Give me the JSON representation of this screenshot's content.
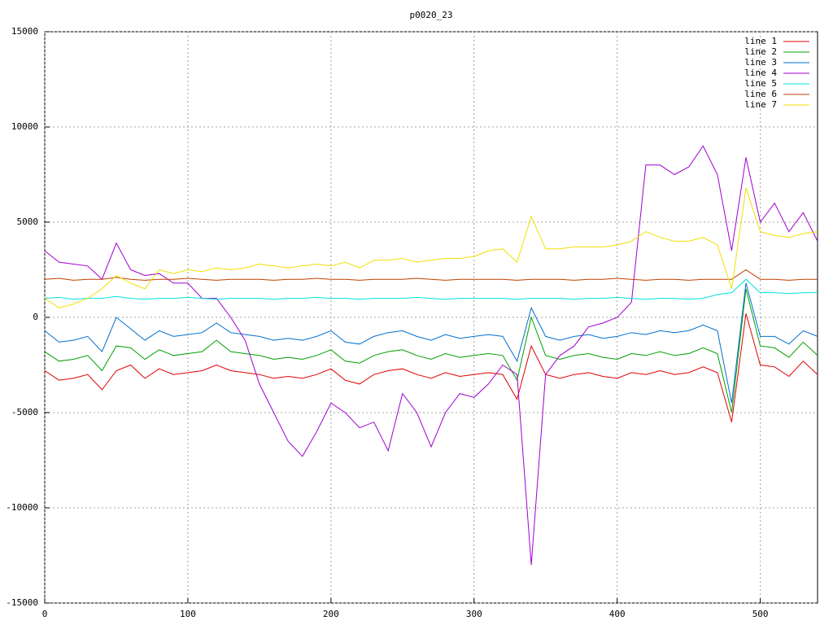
{
  "chart_data": {
    "type": "line",
    "title": "p0020_23",
    "x": [
      0,
      10,
      20,
      30,
      40,
      50,
      60,
      70,
      80,
      90,
      100,
      110,
      120,
      130,
      140,
      150,
      160,
      170,
      180,
      190,
      200,
      210,
      220,
      230,
      240,
      250,
      260,
      270,
      280,
      290,
      300,
      310,
      320,
      330,
      340,
      350,
      360,
      370,
      380,
      390,
      400,
      410,
      420,
      430,
      440,
      450,
      460,
      470,
      480,
      490,
      500,
      510,
      520,
      530,
      540
    ],
    "xlim": [
      0,
      540
    ],
    "xticks": [
      0,
      100,
      200,
      300,
      400,
      500
    ],
    "ylim": [
      -15000,
      15000
    ],
    "yticks": [
      -15000,
      -10000,
      -5000,
      0,
      5000,
      10000,
      15000
    ],
    "grid": true,
    "legend": "top-right",
    "series": [
      {
        "name": "line 1",
        "color": "#e00000",
        "values": [
          -2800,
          -3300,
          -3200,
          -3000,
          -3800,
          -2800,
          -2500,
          -3200,
          -2700,
          -3000,
          -2900,
          -2800,
          -2500,
          -2800,
          -2900,
          -3000,
          -3200,
          -3100,
          -3200,
          -3000,
          -2700,
          -3300,
          -3500,
          -3000,
          -2800,
          -2700,
          -3000,
          -3200,
          -2900,
          -3100,
          -3000,
          -2900,
          -3000,
          -4300,
          -1500,
          -3000,
          -3200,
          -3000,
          -2900,
          -3100,
          -3200,
          -2900,
          -3000,
          -2800,
          -3000,
          -2900,
          -2600,
          -2900,
          -5500,
          200,
          -2500,
          -2600,
          -3100,
          -2300,
          -3000
        ]
      },
      {
        "name": "line 2",
        "color": "#00a000",
        "values": [
          -1800,
          -2300,
          -2200,
          -2000,
          -2800,
          -1500,
          -1600,
          -2200,
          -1700,
          -2000,
          -1900,
          -1800,
          -1200,
          -1800,
          -1900,
          -2000,
          -2200,
          -2100,
          -2200,
          -2000,
          -1700,
          -2300,
          -2400,
          -2000,
          -1800,
          -1700,
          -2000,
          -2200,
          -1900,
          -2100,
          -2000,
          -1900,
          -2000,
          -3300,
          0,
          -2000,
          -2200,
          -2000,
          -1900,
          -2100,
          -2200,
          -1900,
          -2000,
          -1800,
          -2000,
          -1900,
          -1600,
          -1900,
          -5000,
          1500,
          -1500,
          -1600,
          -2100,
          -1300,
          -2000
        ]
      },
      {
        "name": "line 3",
        "color": "#0070d0",
        "values": [
          -700,
          -1300,
          -1200,
          -1000,
          -1800,
          0,
          -600,
          -1200,
          -700,
          -1000,
          -900,
          -800,
          -300,
          -800,
          -900,
          -1000,
          -1200,
          -1100,
          -1200,
          -1000,
          -700,
          -1300,
          -1400,
          -1000,
          -800,
          -700,
          -1000,
          -1200,
          -900,
          -1100,
          -1000,
          -900,
          -1000,
          -2300,
          500,
          -1000,
          -1200,
          -1000,
          -900,
          -1100,
          -1000,
          -800,
          -900,
          -700,
          -800,
          -700,
          -400,
          -700,
          -4500,
          1800,
          -1000,
          -1000,
          -1400,
          -700,
          -1000
        ]
      },
      {
        "name": "line 4",
        "color": "#a000d0",
        "values": [
          3500,
          2900,
          2800,
          2700,
          2000,
          3900,
          2500,
          2200,
          2300,
          1800,
          1800,
          1000,
          1000,
          0,
          -1200,
          -3500,
          -5000,
          -6500,
          -7300,
          -6000,
          -4500,
          -5000,
          -5800,
          -5500,
          -7000,
          -4000,
          -5000,
          -6800,
          -5000,
          -4000,
          -4200,
          -3500,
          -2500,
          -3000,
          -13000,
          -3000,
          -2000,
          -1500,
          -500,
          -300,
          0,
          800,
          8000,
          8000,
          7500,
          7900,
          9000,
          7500,
          3500,
          8400,
          5000,
          6000,
          4500,
          5500,
          4000
        ]
      },
      {
        "name": "line 5",
        "color": "#00e0e0",
        "values": [
          1000,
          1050,
          950,
          1000,
          1000,
          1100,
          1000,
          950,
          1000,
          1000,
          1050,
          1000,
          950,
          1000,
          1000,
          1000,
          950,
          1000,
          1000,
          1050,
          1000,
          1000,
          950,
          1000,
          1000,
          1000,
          1050,
          1000,
          950,
          1000,
          1000,
          1000,
          1000,
          950,
          1000,
          1000,
          1000,
          950,
          1000,
          1000,
          1050,
          1000,
          950,
          1000,
          1000,
          950,
          1000,
          1200,
          1300,
          2000,
          1300,
          1300,
          1250,
          1300,
          1300
        ]
      },
      {
        "name": "line 6",
        "color": "#c04000",
        "values": [
          2000,
          2050,
          1950,
          2000,
          2000,
          2100,
          2000,
          1950,
          2000,
          2000,
          2050,
          2000,
          1950,
          2000,
          2000,
          2000,
          1950,
          2000,
          2000,
          2050,
          2000,
          2000,
          1950,
          2000,
          2000,
          2000,
          2050,
          2000,
          1950,
          2000,
          2000,
          2000,
          2000,
          1950,
          2000,
          2000,
          2000,
          1950,
          2000,
          2000,
          2050,
          2000,
          1950,
          2000,
          2000,
          1950,
          2000,
          2000,
          2000,
          2500,
          2000,
          2000,
          1950,
          2000,
          2000
        ]
      },
      {
        "name": "line 7",
        "color": "#f0e000",
        "values": [
          1000,
          500,
          700,
          1000,
          1500,
          2200,
          1800,
          1500,
          2500,
          2300,
          2500,
          2400,
          2600,
          2500,
          2600,
          2800,
          2700,
          2600,
          2700,
          2800,
          2700,
          2900,
          2600,
          3000,
          3000,
          3100,
          2900,
          3000,
          3100,
          3100,
          3200,
          3500,
          3600,
          2900,
          5300,
          3600,
          3600,
          3700,
          3700,
          3700,
          3800,
          4000,
          4500,
          4200,
          4000,
          4000,
          4200,
          3800,
          1500,
          6800,
          4500,
          4300,
          4200,
          4400,
          4500
        ]
      }
    ]
  }
}
